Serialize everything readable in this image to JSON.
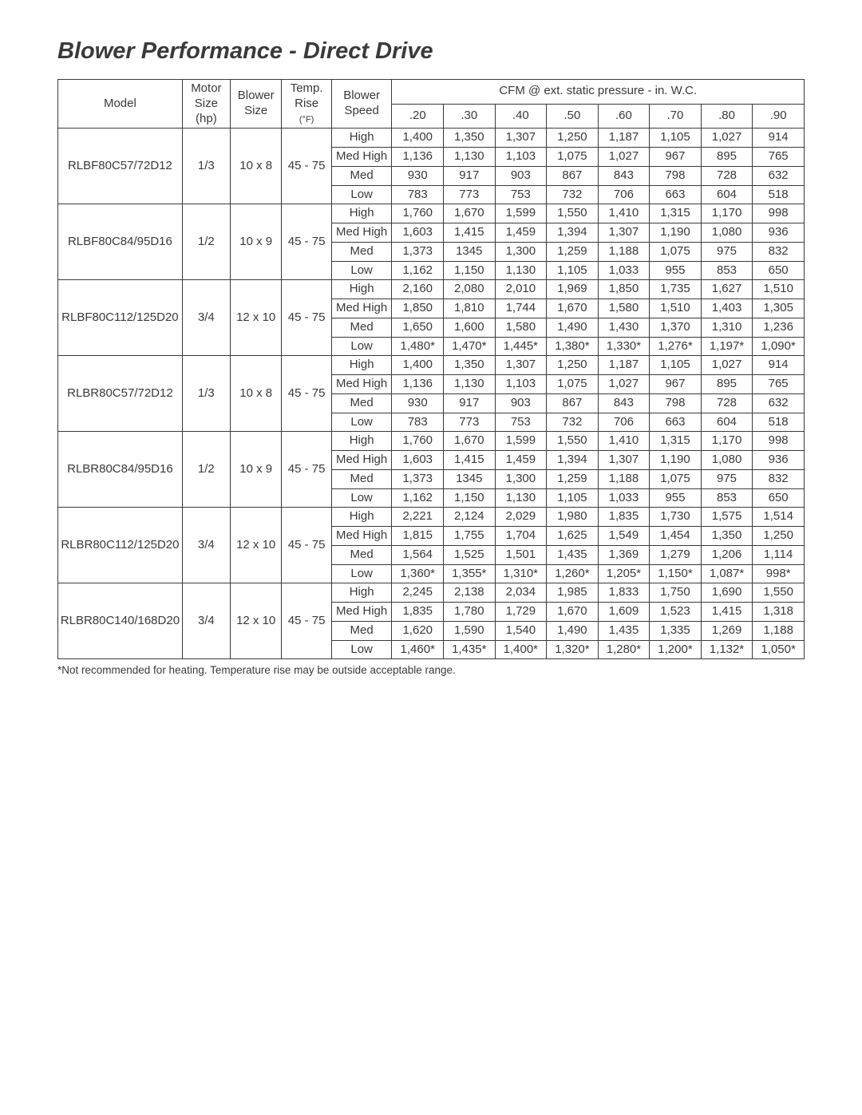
{
  "title": "Blower Performance - Direct Drive",
  "note": "*Not recommended for heating. Temperature rise may be outside acceptable range.",
  "header": {
    "model": "Model",
    "motor": [
      "Motor",
      "Size",
      "(hp)"
    ],
    "blowerSize": [
      "Blower",
      "Size"
    ],
    "tempRise": [
      "Temp.",
      "Rise",
      "(°F)"
    ],
    "blowerSpeed": [
      "Blower",
      "Speed"
    ],
    "cfmTitle": "CFM @  ext. static pressure - in. W.C.",
    "pressures": [
      ".20",
      ".30",
      ".40",
      ".50",
      ".60",
      ".70",
      ".80",
      ".90"
    ]
  },
  "groups": [
    {
      "model": "RLBF80C57/72D12",
      "motor": "1/3",
      "blowerSize": "10 x 8",
      "tempRise": "45 - 75",
      "rows": [
        {
          "speed": "High",
          "cfm": [
            "1,400",
            "1,350",
            "1,307",
            "1,250",
            "1,187",
            "1,105",
            "1,027",
            "914"
          ]
        },
        {
          "speed": "Med High",
          "cfm": [
            "1,136",
            "1,130",
            "1,103",
            "1,075",
            "1,027",
            "967",
            "895",
            "765"
          ]
        },
        {
          "speed": "Med",
          "cfm": [
            "930",
            "917",
            "903",
            "867",
            "843",
            "798",
            "728",
            "632"
          ]
        },
        {
          "speed": "Low",
          "cfm": [
            "783",
            "773",
            "753",
            "732",
            "706",
            "663",
            "604",
            "518"
          ]
        }
      ]
    },
    {
      "model": "RLBF80C84/95D16",
      "motor": "1/2",
      "blowerSize": "10 x 9",
      "tempRise": "45 - 75",
      "rows": [
        {
          "speed": "High",
          "cfm": [
            "1,760",
            "1,670",
            "1,599",
            "1,550",
            "1,410",
            "1,315",
            "1,170",
            "998"
          ]
        },
        {
          "speed": "Med High",
          "cfm": [
            "1,603",
            "1,415",
            "1,459",
            "1,394",
            "1,307",
            "1,190",
            "1,080",
            "936"
          ]
        },
        {
          "speed": "Med",
          "cfm": [
            "1,373",
            "1345",
            "1,300",
            "1,259",
            "1,188",
            "1,075",
            "975",
            "832"
          ]
        },
        {
          "speed": "Low",
          "cfm": [
            "1,162",
            "1,150",
            "1,130",
            "1,105",
            "1,033",
            "955",
            "853",
            "650"
          ]
        }
      ]
    },
    {
      "model": "RLBF80C112/125D20",
      "motor": "3/4",
      "blowerSize": "12 x 10",
      "tempRise": "45 - 75",
      "rows": [
        {
          "speed": "High",
          "cfm": [
            "2,160",
            "2,080",
            "2,010",
            "1,969",
            "1,850",
            "1,735",
            "1,627",
            "1,510"
          ]
        },
        {
          "speed": "Med High",
          "cfm": [
            "1,850",
            "1,810",
            "1,744",
            "1,670",
            "1,580",
            "1,510",
            "1,403",
            "1,305"
          ]
        },
        {
          "speed": "Med",
          "cfm": [
            "1,650",
            "1,600",
            "1,580",
            "1,490",
            "1,430",
            "1,370",
            "1,310",
            "1,236"
          ]
        },
        {
          "speed": "Low",
          "cfm": [
            "1,480*",
            "1,470*",
            "1,445*",
            "1,380*",
            "1,330*",
            "1,276*",
            "1,197*",
            "1,090*"
          ]
        }
      ]
    },
    {
      "model": "RLBR80C57/72D12",
      "motor": "1/3",
      "blowerSize": "10 x 8",
      "tempRise": "45 - 75",
      "rows": [
        {
          "speed": "High",
          "cfm": [
            "1,400",
            "1,350",
            "1,307",
            "1,250",
            "1,187",
            "1,105",
            "1,027",
            "914"
          ]
        },
        {
          "speed": "Med High",
          "cfm": [
            "1,136",
            "1,130",
            "1,103",
            "1,075",
            "1,027",
            "967",
            "895",
            "765"
          ]
        },
        {
          "speed": "Med",
          "cfm": [
            "930",
            "917",
            "903",
            "867",
            "843",
            "798",
            "728",
            "632"
          ]
        },
        {
          "speed": "Low",
          "cfm": [
            "783",
            "773",
            "753",
            "732",
            "706",
            "663",
            "604",
            "518"
          ]
        }
      ]
    },
    {
      "model": "RLBR80C84/95D16",
      "motor": "1/2",
      "blowerSize": "10 x 9",
      "tempRise": "45 - 75",
      "rows": [
        {
          "speed": "High",
          "cfm": [
            "1,760",
            "1,670",
            "1,599",
            "1,550",
            "1,410",
            "1,315",
            "1,170",
            "998"
          ]
        },
        {
          "speed": "Med High",
          "cfm": [
            "1,603",
            "1,415",
            "1,459",
            "1,394",
            "1,307",
            "1,190",
            "1,080",
            "936"
          ]
        },
        {
          "speed": "Med",
          "cfm": [
            "1,373",
            "1345",
            "1,300",
            "1,259",
            "1,188",
            "1,075",
            "975",
            "832"
          ]
        },
        {
          "speed": "Low",
          "cfm": [
            "1,162",
            "1,150",
            "1,130",
            "1,105",
            "1,033",
            "955",
            "853",
            "650"
          ]
        }
      ]
    },
    {
      "model": "RLBR80C112/125D20",
      "motor": "3/4",
      "blowerSize": "12 x 10",
      "tempRise": "45 - 75",
      "rows": [
        {
          "speed": "High",
          "cfm": [
            "2,221",
            "2,124",
            "2,029",
            "1,980",
            "1,835",
            "1,730",
            "1,575",
            "1,514"
          ]
        },
        {
          "speed": "Med High",
          "cfm": [
            "1,815",
            "1,755",
            "1,704",
            "1,625",
            "1,549",
            "1,454",
            "1,350",
            "1,250"
          ]
        },
        {
          "speed": "Med",
          "cfm": [
            "1,564",
            "1,525",
            "1,501",
            "1,435",
            "1,369",
            "1,279",
            "1,206",
            "1,114"
          ]
        },
        {
          "speed": "Low",
          "cfm": [
            "1,360*",
            "1,355*",
            "1,310*",
            "1,260*",
            "1,205*",
            "1,150*",
            "1,087*",
            "998*"
          ]
        }
      ]
    },
    {
      "model": "RLBR80C140/168D20",
      "motor": "3/4",
      "blowerSize": "12 x 10",
      "tempRise": "45 - 75",
      "rows": [
        {
          "speed": "High",
          "cfm": [
            "2,245",
            "2,138",
            "2,034",
            "1,985",
            "1,833",
            "1,750",
            "1,690",
            "1,550"
          ]
        },
        {
          "speed": "Med High",
          "cfm": [
            "1,835",
            "1,780",
            "1,729",
            "1,670",
            "1,609",
            "1,523",
            "1,415",
            "1,318"
          ]
        },
        {
          "speed": "Med",
          "cfm": [
            "1,620",
            "1,590",
            "1,540",
            "1,490",
            "1,435",
            "1,335",
            "1,269",
            "1,188"
          ]
        },
        {
          "speed": "Low",
          "cfm": [
            "1,460*",
            "1,435*",
            "1,400*",
            "1,320*",
            "1,280*",
            "1,200*",
            "1,132*",
            "1,050*"
          ]
        }
      ]
    }
  ]
}
